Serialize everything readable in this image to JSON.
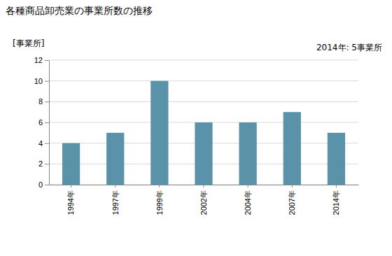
{
  "chart_data": {
    "type": "bar",
    "title": "各種商品卸売業の事業所数の推移",
    "y_label": "[事業所]",
    "annotation": "2014年: 5事業所",
    "categories": [
      "1994年",
      "1997年",
      "1999年",
      "2002年",
      "2004年",
      "2007年",
      "2014年"
    ],
    "values": [
      4,
      5,
      10,
      6,
      6,
      7,
      5
    ],
    "color": "#5a93a9",
    "ylim": [
      0,
      12
    ],
    "yticks": [
      0,
      2,
      4,
      6,
      8,
      10,
      12
    ],
    "grid": true
  }
}
